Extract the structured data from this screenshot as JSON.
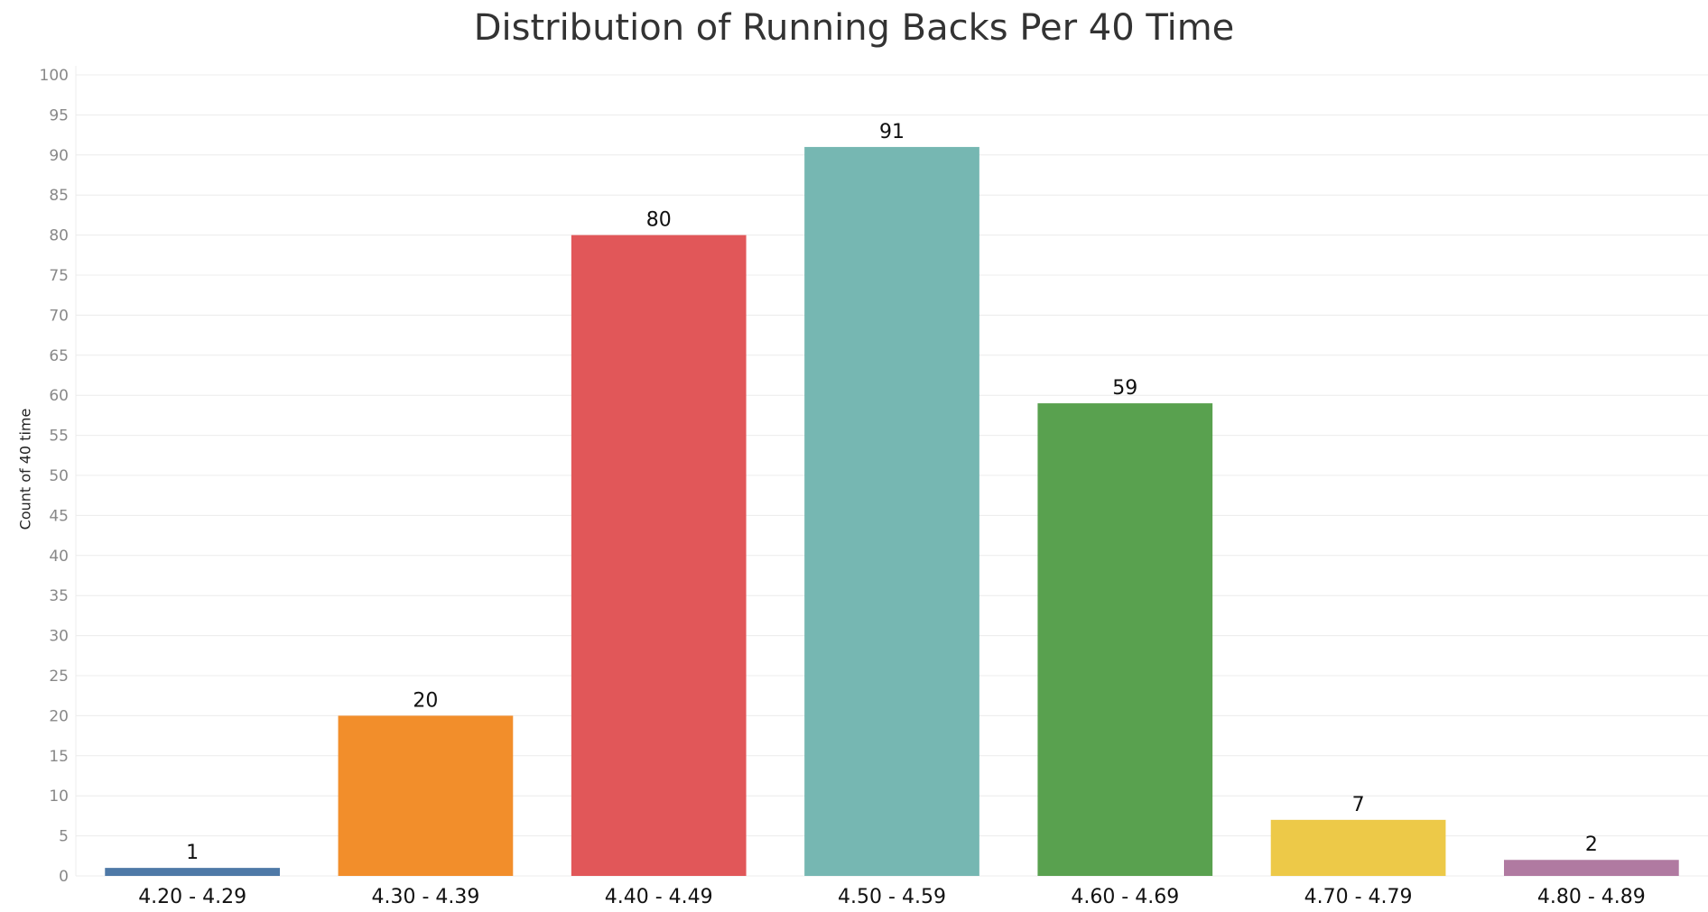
{
  "chart_data": {
    "type": "bar",
    "title": "Distribution of Running Backs Per 40 Time",
    "xlabel": "",
    "ylabel": "Count of 40 time",
    "ylim": [
      0,
      100
    ],
    "yticks": [
      0,
      5,
      10,
      15,
      20,
      25,
      30,
      35,
      40,
      45,
      50,
      55,
      60,
      65,
      70,
      75,
      80,
      85,
      90,
      95,
      100
    ],
    "grid": true,
    "categories": [
      "4.20 - 4.29",
      "4.30 - 4.39",
      "4.40 - 4.49",
      "4.50 - 4.59",
      "4.60 - 4.69",
      "4.70 - 4.79",
      "4.80 - 4.89"
    ],
    "values": [
      1,
      20,
      80,
      91,
      59,
      7,
      2
    ],
    "colors": [
      "#4e79a7",
      "#f28e2b",
      "#e15759",
      "#76b7b2",
      "#59a14f",
      "#edc948",
      "#b07aa1"
    ],
    "data_labels": [
      "1",
      "20",
      "80",
      "91",
      "59",
      "7",
      "2"
    ]
  }
}
